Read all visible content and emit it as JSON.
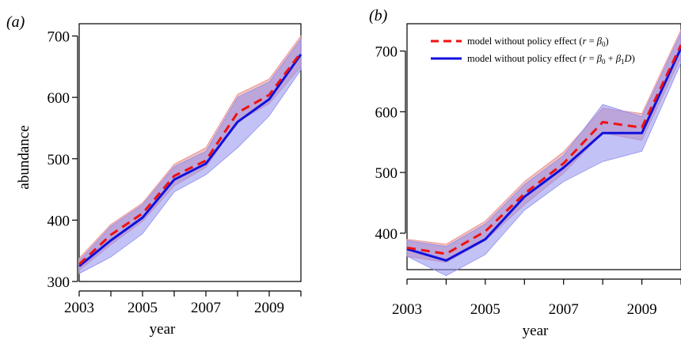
{
  "chart_data": [
    {
      "type": "line",
      "panel_label": "(a)",
      "xlabel": "year",
      "ylabel": "abundance",
      "x": [
        2003,
        2004,
        2005,
        2006,
        2007,
        2008,
        2009,
        2010
      ],
      "xlim": [
        2003,
        2010
      ],
      "ylim": [
        300,
        720
      ],
      "xticks": [
        2003,
        2005,
        2007,
        2009
      ],
      "yticks": [
        300,
        400,
        500,
        600,
        700
      ],
      "series": [
        {
          "color": "#ee1111",
          "dash": true,
          "values": [
            328,
            376,
            411,
            472,
            497,
            575,
            604,
            673
          ],
          "band_lower": [
            318,
            360,
            398,
            456,
            486,
            560,
            590,
            650
          ],
          "band_upper": [
            338,
            393,
            428,
            491,
            518,
            605,
            630,
            700
          ],
          "band_color": "#e78a8a"
        },
        {
          "color": "#1010dd",
          "dash": false,
          "values": [
            325,
            367,
            404,
            466,
            492,
            560,
            597,
            670
          ],
          "band_lower": [
            313,
            340,
            378,
            446,
            474,
            518,
            570,
            645
          ],
          "band_upper": [
            334,
            390,
            425,
            487,
            512,
            600,
            625,
            695
          ],
          "band_color": "#8f8fee"
        }
      ]
    },
    {
      "type": "line",
      "panel_label": "(b)",
      "xlabel": "year",
      "ylabel": "",
      "x": [
        2003,
        2004,
        2005,
        2006,
        2007,
        2008,
        2009,
        2010
      ],
      "xlim": [
        2003,
        2010
      ],
      "ylim": [
        340,
        745
      ],
      "xticks": [
        2003,
        2005,
        2007,
        2009
      ],
      "yticks": [
        400,
        500,
        600,
        700
      ],
      "legend_position": "top-left",
      "series": [
        {
          "name": "model without policy effect (r = β0)",
          "color": "#ee1111",
          "dash": true,
          "values": [
            376,
            366,
            403,
            465,
            515,
            583,
            574,
            710
          ],
          "band_lower": [
            362,
            352,
            388,
            447,
            499,
            565,
            553,
            690
          ],
          "band_upper": [
            390,
            382,
            420,
            485,
            534,
            606,
            597,
            735
          ],
          "band_color": "#e78a8a"
        },
        {
          "name": "model without policy effect (r = β0 + β1D)",
          "color": "#1010dd",
          "dash": false,
          "values": [
            374,
            355,
            390,
            460,
            508,
            565,
            565,
            705
          ],
          "band_lower": [
            362,
            330,
            365,
            438,
            485,
            518,
            535,
            680
          ],
          "band_upper": [
            388,
            378,
            415,
            480,
            528,
            612,
            592,
            730
          ],
          "band_color": "#8f8fee"
        }
      ]
    }
  ]
}
